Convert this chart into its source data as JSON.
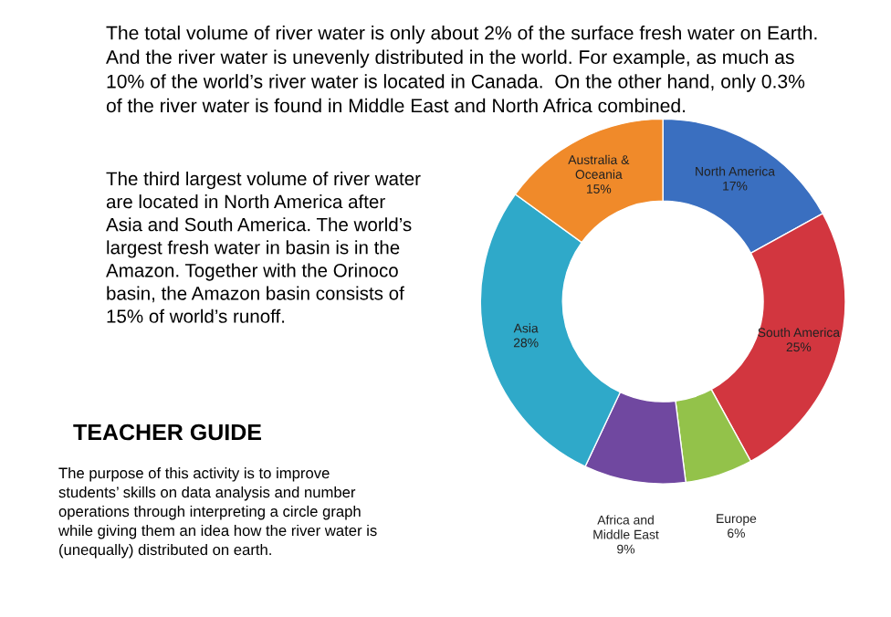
{
  "chart_data": {
    "type": "donut",
    "categories": [
      "North America\n17%",
      "South America\n25%",
      "Europe\n6%",
      "Africa and\nMiddle East\n9%",
      "Asia\n28%",
      "Australia &\nOceania\n15%"
    ],
    "values": [
      17,
      25,
      6,
      9,
      28,
      15
    ],
    "colors": [
      "#3a6fc0",
      "#d2363f",
      "#93c24a",
      "#7048a0",
      "#2fa9c9",
      "#f08a2a"
    ],
    "annotations": [
      "The total volume of river water is only about 2% of the surface fresh water on Earth.\nAnd the river water is unevenly distributed in the world. For example, as much as\n10% of the world’s river water is located in Canada.  On the other hand, only 0.3%\nof the river water is found in Middle East and North Africa combined.",
      "The third largest volume of river water\nare located in North America after\nAsia and South America. The world’s\nlargest fresh water in basin is in the\nAmazon. Together with the Orinoco\nbasin, the Amazon basin consists of\n15% of world’s runoff.",
      "TEACHER GUIDE",
      "The purpose of this activity is to improve\nstudents’ skills on data analysis and number\noperations through interpreting a circle graph\nwhile giving them an idea how the river water is\n(unequally) distributed on earth."
    ]
  }
}
